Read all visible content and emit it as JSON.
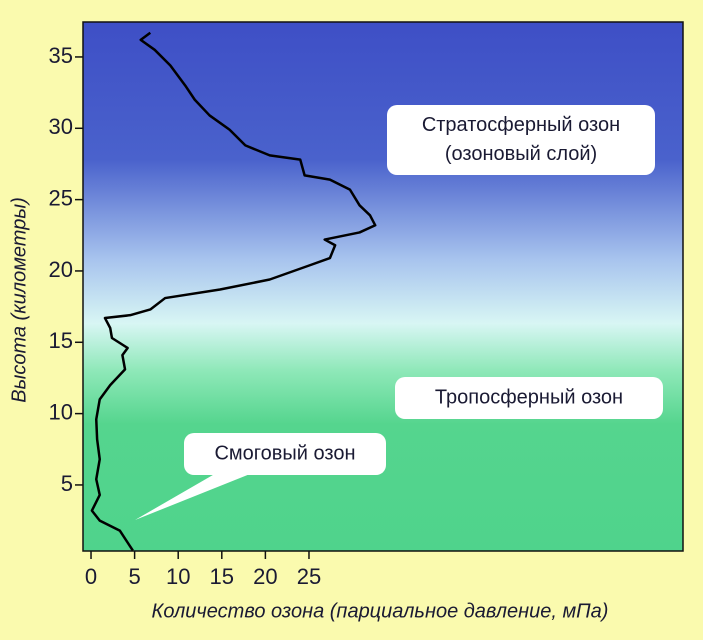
{
  "chart_data": {
    "type": "line",
    "x_label": "Количество озона (парциальное давление, мПа)",
    "y_label": "Высота (километры)",
    "x": [
      4.8,
      3.3,
      1.0,
      0.1,
      1.0,
      0.6,
      1.0,
      0.7,
      0.6,
      1.0,
      2.2,
      3.9,
      3.6,
      4.2,
      2.4,
      2.2,
      1.6,
      4.5,
      6.8,
      8.5,
      14.8,
      20.5,
      25.1,
      27.4,
      28.0,
      26.8,
      30.8,
      32.6,
      32.0,
      30.8,
      29.7,
      27.4,
      24.5,
      24.0,
      20.5,
      17.7,
      15.9,
      13.6,
      11.9,
      10.8,
      9.1,
      7.3,
      5.7,
      6.8
    ],
    "values": [
      0.4,
      1.8,
      2.5,
      3.2,
      4.3,
      5.4,
      6.8,
      8.2,
      9.6,
      11.0,
      12.0,
      13.1,
      14.1,
      14.6,
      15.3,
      16.0,
      16.7,
      16.9,
      17.3,
      18.1,
      18.7,
      19.4,
      20.4,
      20.9,
      21.8,
      22.2,
      22.7,
      23.2,
      23.9,
      24.6,
      25.7,
      26.4,
      26.7,
      27.8,
      28.1,
      28.8,
      29.9,
      30.9,
      32.0,
      33.0,
      34.4,
      35.5,
      36.2,
      36.7
    ],
    "color": "#000000",
    "xlim": [
      -0.92,
      67.9
    ],
    "ylim": [
      0.37,
      37.45
    ],
    "xticks": [
      0,
      5,
      10,
      15,
      20,
      25
    ],
    "yticks": [
      5,
      10,
      15,
      20,
      25,
      30,
      35
    ],
    "annotations": [
      {
        "lines": [
          "Стратосферный озон",
          "(озоновый слой)"
        ]
      },
      {
        "lines": [
          "Тропосферный озон"
        ]
      },
      {
        "lines": [
          "Смоговый озон"
        ]
      }
    ]
  }
}
